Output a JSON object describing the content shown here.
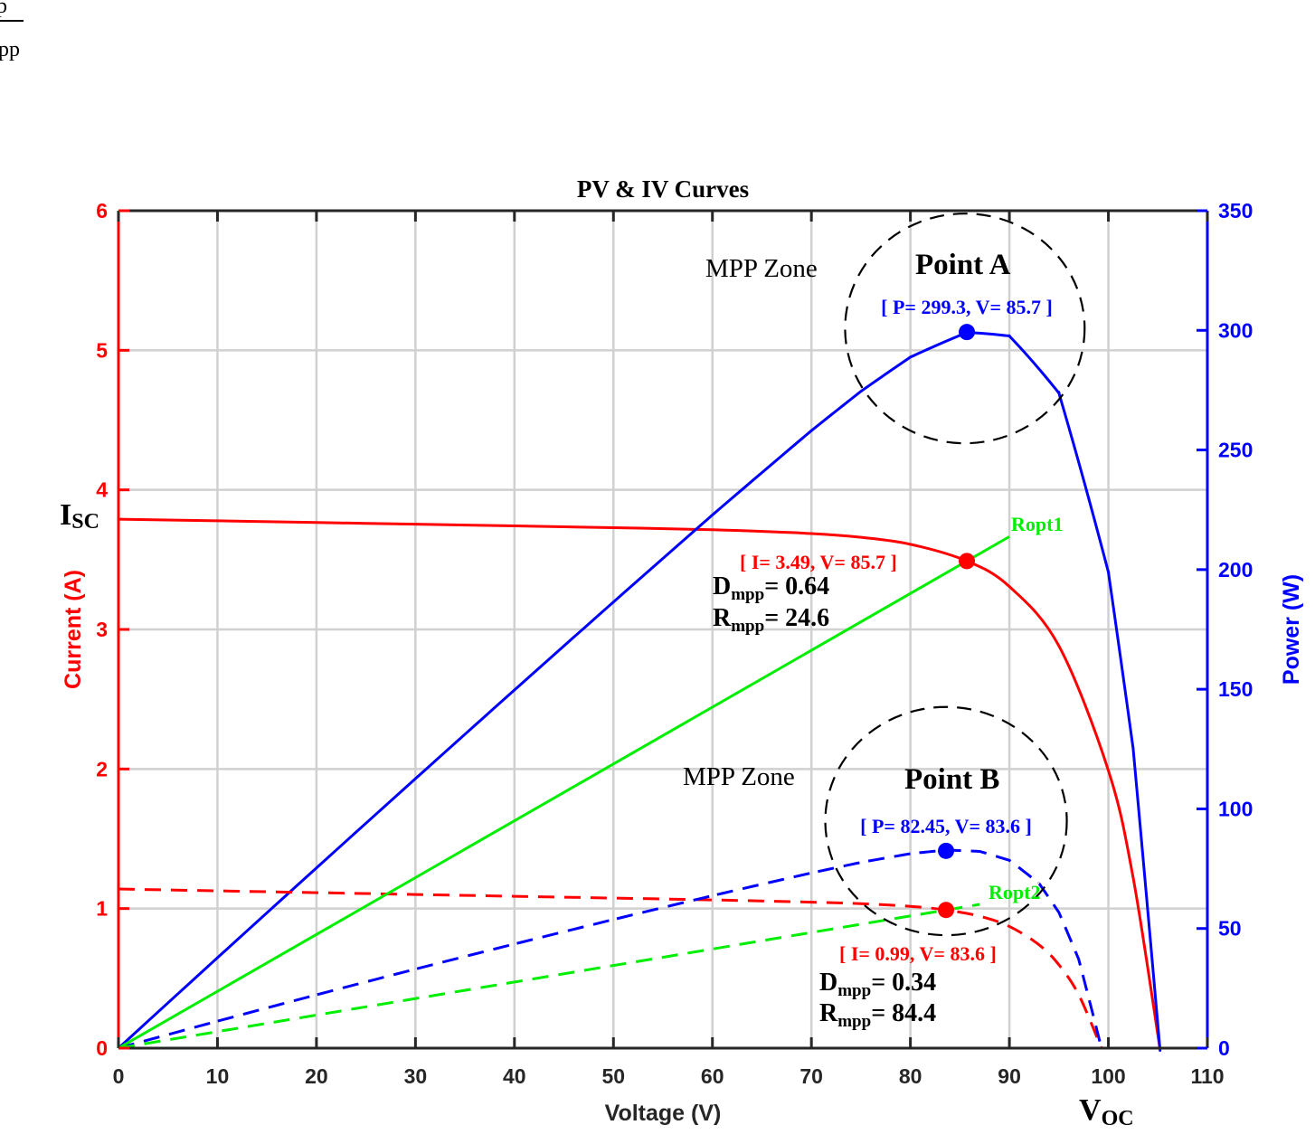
{
  "fragment": {
    "top": "p",
    "bottom": "pp"
  },
  "chart_data": {
    "type": "line",
    "title": "PV & IV Curves",
    "xlabel": "Voltage (V)",
    "ylabel_left": "Current (A)",
    "ylabel_right": "Power (W)",
    "xlim": [
      0,
      110
    ],
    "ylim_left": [
      0,
      6
    ],
    "ylim_right": [
      0,
      350
    ],
    "xticks": [
      0,
      10,
      20,
      30,
      40,
      50,
      60,
      70,
      80,
      90,
      100,
      110
    ],
    "yticks_left": [
      0,
      1,
      2,
      3,
      4,
      5,
      6
    ],
    "yticks_right": [
      0,
      50,
      100,
      150,
      200,
      250,
      300,
      350
    ],
    "grid": true,
    "colors": {
      "current": "#ff0000",
      "power": "#0000ff",
      "ropt": "#00ee00",
      "zone": "#000000",
      "grid": "#d0d0d0"
    },
    "series": [
      {
        "key": "iv_a",
        "axis": "left",
        "style": "solid",
        "color": "#ff0000",
        "v": [
          0,
          10,
          20,
          30,
          40,
          50,
          60,
          70,
          75,
          80,
          85.7,
          90,
          95,
          100,
          102.5,
          105.2
        ],
        "i": [
          3.79,
          3.778,
          3.766,
          3.754,
          3.742,
          3.729,
          3.714,
          3.687,
          3.66,
          3.61,
          3.49,
          3.307,
          2.882,
          1.989,
          1.222,
          0
        ]
      },
      {
        "key": "pv_a",
        "axis": "right",
        "style": "solid",
        "color": "#0000ff",
        "derived": "V*I of iv_a"
      },
      {
        "key": "iv_b",
        "axis": "left",
        "style": "dashed",
        "color": "#ff0000",
        "v": [
          0,
          10,
          20,
          30,
          40,
          50,
          60,
          70,
          75,
          80,
          83.6,
          87,
          90,
          93,
          95,
          97,
          99.3
        ],
        "i": [
          1.14,
          1.127,
          1.114,
          1.101,
          1.088,
          1.075,
          1.062,
          1.046,
          1.035,
          1.016,
          0.99,
          0.945,
          0.872,
          0.74,
          0.597,
          0.383,
          0
        ]
      },
      {
        "key": "pv_b",
        "axis": "right",
        "style": "dashed",
        "color": "#0000ff",
        "derived": "V*I of iv_b"
      },
      {
        "key": "ropt1",
        "axis": "left",
        "style": "solid",
        "color": "#00ee00",
        "v": [
          0,
          90
        ],
        "i": [
          0,
          3.665
        ]
      },
      {
        "key": "ropt2",
        "axis": "left",
        "style": "dashed",
        "color": "#00ee00",
        "v": [
          0,
          87
        ],
        "i": [
          0,
          1.03
        ]
      }
    ],
    "points": [
      {
        "key": "mpp_a_power",
        "axis": "right",
        "v": 85.7,
        "value": 299.3,
        "color": "#0000ff"
      },
      {
        "key": "mpp_a_current",
        "axis": "left",
        "v": 85.7,
        "value": 3.49,
        "color": "#ff0000"
      },
      {
        "key": "mpp_b_power",
        "axis": "right",
        "v": 83.6,
        "value": 82.45,
        "color": "#0000ff"
      },
      {
        "key": "mpp_b_current",
        "axis": "left",
        "v": 83.6,
        "value": 0.99,
        "color": "#ff0000"
      }
    ],
    "zones": [
      {
        "key": "zone_a",
        "center_v": 85.5,
        "center_p": 300.8,
        "radius_v": 12.1,
        "radius_p": 48
      },
      {
        "key": "zone_b",
        "center_v": 83.6,
        "center_p": 94.9,
        "radius_v": 12.2,
        "radius_p": 47.7
      }
    ],
    "annotations": {
      "zone_a_label": "MPP Zone",
      "point_a": "Point A",
      "point_a_power": "[ P= 299.3, V= 85.7 ]",
      "point_a_current": "[ I= 3.49, V= 85.7 ]",
      "ropt1": "Ropt1",
      "dmpp_a": {
        "main": "D",
        "sub": "mpp",
        "value": "= 0.64"
      },
      "rmpp_a": {
        "main": "R",
        "sub": "mpp",
        "value": "= 24.6"
      },
      "zone_b_label": "MPP Zone",
      "point_b": "Point B",
      "point_b_power": "[ P= 82.45, V= 83.6 ]",
      "point_b_current": "[ I= 0.99, V= 83.6 ]",
      "ropt2": "Ropt2",
      "dmpp_b": {
        "main": "D",
        "sub": "mpp",
        "value": "= 0.34"
      },
      "rmpp_b": {
        "main": "R",
        "sub": "mpp",
        "value": "= 84.4"
      },
      "isc": {
        "main": "I",
        "sub": "SC"
      },
      "voc": {
        "main": "V",
        "sub": "OC"
      }
    }
  }
}
